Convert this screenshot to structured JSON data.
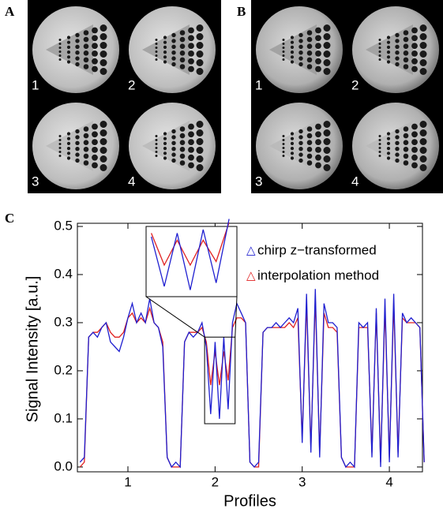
{
  "panels": {
    "A": {
      "letter": "A",
      "image_labels": [
        "1",
        "2",
        "3",
        "4"
      ]
    },
    "B": {
      "letter": "B",
      "image_labels": [
        "1",
        "2",
        "3",
        "4"
      ]
    },
    "C": {
      "letter": "C"
    }
  },
  "chart_data": {
    "type": "line",
    "x_label": "Profiles",
    "y_label": "Signal Intensity [a.u.]",
    "xlim": [
      0.42,
      4.38
    ],
    "xticks": [
      1,
      2,
      3,
      4
    ],
    "ylim": [
      -0.01,
      0.5
    ],
    "yticks": [
      {
        "value": 0,
        "label": "0.0"
      },
      0.1,
      0.2,
      0.3,
      0.4,
      0.5
    ],
    "legend": "upper right",
    "legend_marker": "△",
    "x": [
      0.45,
      0.5,
      0.55,
      0.6,
      0.65,
      0.7,
      0.75,
      0.8,
      0.85,
      0.9,
      0.95,
      1.0,
      1.05,
      1.1,
      1.15,
      1.2,
      1.25,
      1.3,
      1.35,
      1.4,
      1.45,
      1.5,
      1.55,
      1.6,
      1.65,
      1.7,
      1.75,
      1.8,
      1.85,
      1.9,
      1.95,
      2.0,
      2.05,
      2.1,
      2.15,
      2.2,
      2.25,
      2.3,
      2.35,
      2.4,
      2.45,
      2.5,
      2.55,
      2.6,
      2.65,
      2.7,
      2.75,
      2.8,
      2.85,
      2.9,
      2.95,
      3.0,
      3.05,
      3.1,
      3.15,
      3.2,
      3.25,
      3.3,
      3.35,
      3.4,
      3.45,
      3.5,
      3.55,
      3.6,
      3.65,
      3.7,
      3.75,
      3.8,
      3.85,
      3.9,
      3.95,
      4.0,
      4.05,
      4.1,
      4.15,
      4.2,
      4.25,
      4.3,
      4.35,
      4.4
    ],
    "series": [
      {
        "name": "chirp z−transformed",
        "color": "#1f1fd0",
        "values": [
          0.01,
          0.02,
          0.27,
          0.28,
          0.27,
          0.29,
          0.3,
          0.26,
          0.25,
          0.24,
          0.27,
          0.31,
          0.34,
          0.3,
          0.32,
          0.3,
          0.35,
          0.3,
          0.29,
          0.25,
          0.02,
          0.0,
          0.01,
          0.0,
          0.26,
          0.28,
          0.27,
          0.28,
          0.3,
          0.25,
          0.11,
          0.26,
          0.1,
          0.27,
          0.12,
          0.3,
          0.34,
          0.32,
          0.3,
          0.01,
          0.0,
          0.01,
          0.28,
          0.29,
          0.29,
          0.3,
          0.29,
          0.3,
          0.31,
          0.3,
          0.33,
          0.05,
          0.36,
          0.03,
          0.37,
          0.02,
          0.34,
          0.3,
          0.3,
          0.29,
          0.02,
          0.0,
          0.01,
          0.0,
          0.3,
          0.29,
          0.3,
          0.02,
          0.33,
          0.0,
          0.35,
          0.01,
          0.36,
          0.02,
          0.32,
          0.3,
          0.31,
          0.3,
          0.29,
          0.01
        ]
      },
      {
        "name": "interpolation method",
        "color": "#e02020",
        "values": [
          0.0,
          0.01,
          0.27,
          0.28,
          0.28,
          0.29,
          0.3,
          0.28,
          0.27,
          0.27,
          0.28,
          0.31,
          0.32,
          0.3,
          0.31,
          0.3,
          0.33,
          0.3,
          0.29,
          0.26,
          0.02,
          0.0,
          0.0,
          0.0,
          0.26,
          0.28,
          0.28,
          0.28,
          0.29,
          0.26,
          0.17,
          0.24,
          0.17,
          0.24,
          0.18,
          0.29,
          0.31,
          0.31,
          0.3,
          0.01,
          0.0,
          0.0,
          0.28,
          0.29,
          0.29,
          0.29,
          0.29,
          0.29,
          0.3,
          0.29,
          0.31,
          0.06,
          0.34,
          0.04,
          0.35,
          0.03,
          0.32,
          0.29,
          0.29,
          0.28,
          0.02,
          0.0,
          0.0,
          0.0,
          0.29,
          0.29,
          0.29,
          0.03,
          0.32,
          0.01,
          0.33,
          0.02,
          0.34,
          0.03,
          0.31,
          0.3,
          0.3,
          0.3,
          0.29,
          0.01
        ]
      }
    ]
  }
}
